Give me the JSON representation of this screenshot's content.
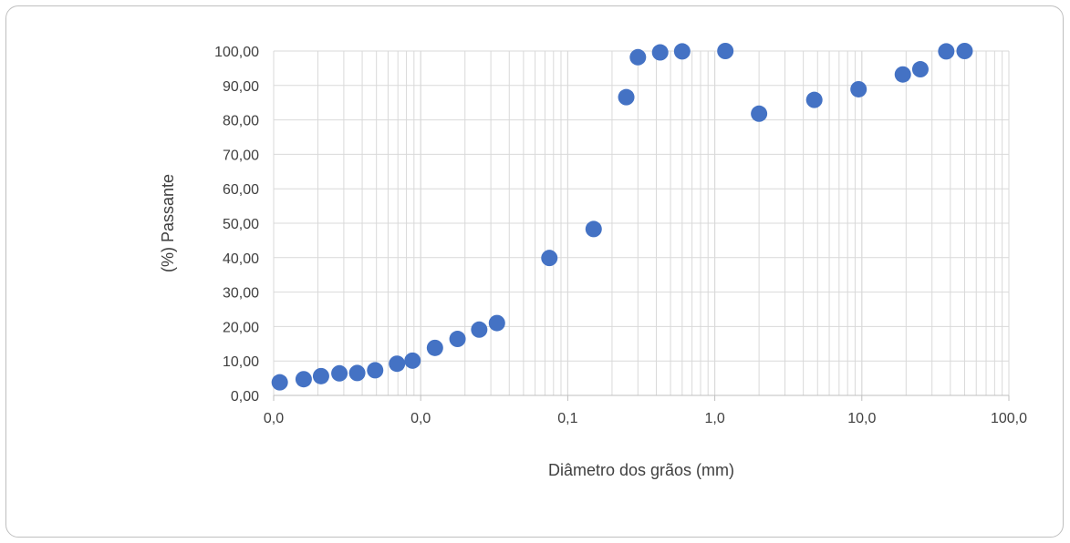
{
  "chart_data": {
    "type": "scatter",
    "title": "",
    "xlabel": "Diâmetro dos grãos (mm)",
    "ylabel": "(%) Passante",
    "x_scale": "log",
    "xlim": [
      0.001,
      100
    ],
    "ylim": [
      0,
      100
    ],
    "grid": true,
    "legend": "none",
    "marker_color": "#4472C4",
    "x_ticks": [
      0.001,
      0.01,
      0.1,
      1,
      10,
      100
    ],
    "x_tick_labels": [
      "0,0",
      "0,0",
      "0,1",
      "1,0",
      "10,0",
      "100,0"
    ],
    "y_ticks": [
      0,
      10,
      20,
      30,
      40,
      50,
      60,
      70,
      80,
      90,
      100
    ],
    "y_tick_labels": [
      "0,00",
      "10,00",
      "20,00",
      "30,00",
      "40,00",
      "50,00",
      "60,00",
      "70,00",
      "80,00",
      "90,00",
      "100,00"
    ],
    "series": [
      {
        "x": [
          0.0011,
          0.0016,
          0.0021,
          0.0028,
          0.0037,
          0.0049,
          0.0069,
          0.0088,
          0.0125,
          0.0178,
          0.025,
          0.033,
          0.075,
          0.15,
          0.25,
          0.3,
          0.425,
          0.6,
          1.18,
          2.0,
          4.75,
          9.5,
          19.0,
          25.0,
          37.5,
          50.0
        ],
        "y": [
          3.8,
          4.7,
          5.6,
          6.4,
          6.5,
          7.3,
          9.2,
          10.1,
          13.8,
          16.4,
          19.1,
          21.0,
          39.9,
          48.3,
          86.6,
          98.2,
          99.6,
          99.9,
          100.0,
          81.8,
          85.8,
          88.9,
          93.2,
          94.7,
          99.9,
          100.0
        ]
      }
    ]
  }
}
